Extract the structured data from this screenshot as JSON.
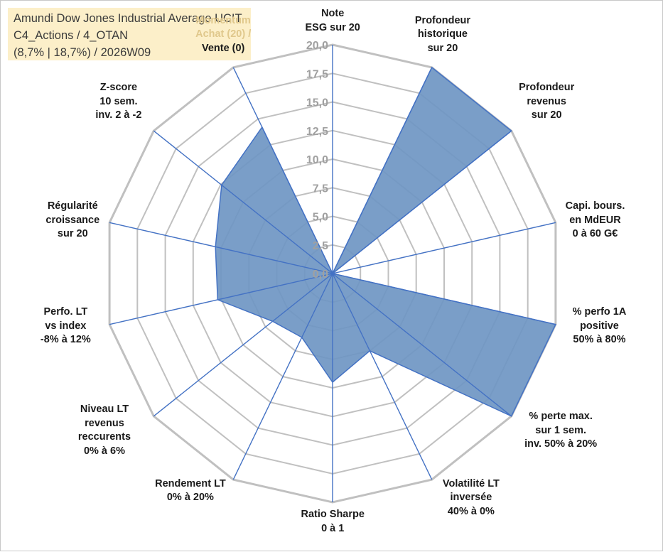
{
  "header": {
    "lines": [
      "Amundi Dow Jones Industrial Average UCIT",
      "C4_Actions / 4_OTAN",
      "(8,7% | 18,7%) / 2026W09"
    ]
  },
  "colors": {
    "fill": "#6f96c3",
    "stroke": "#4472c4",
    "grid_ring": "#c0c0c0",
    "spoke": "#4472c4",
    "title_bg": "#fcefc9",
    "muted_label": "#e0c88c"
  },
  "chart_data": {
    "type": "radar",
    "title": "",
    "rmax": 20,
    "ticks": [
      "0,0",
      "2,5",
      "5,0",
      "7,5",
      "10,0",
      "12,5",
      "15,0",
      "17,5",
      "20,0"
    ],
    "axes": [
      {
        "label": [
          "Note",
          "ESG sur 20"
        ],
        "value": 0
      },
      {
        "label": [
          "Profondeur",
          "historique",
          "sur 20"
        ],
        "value": 20
      },
      {
        "label": [
          "Profondeur",
          "revenus",
          "sur 20"
        ],
        "value": 20
      },
      {
        "label": [
          "Capi. bours.",
          "en MdEUR",
          "0 à 60 G€"
        ],
        "value": 0
      },
      {
        "label": [
          "% perfo 1A",
          "positive",
          "50% à 80%"
        ],
        "value": 20
      },
      {
        "label": [
          "% perte max.",
          "sur 1 sem.",
          "inv. 50% à 20%"
        ],
        "value": 20
      },
      {
        "label": [
          "Volatilité LT",
          "inversée",
          "40% à 0%"
        ],
        "value": 7.5
      },
      {
        "label": [
          "Ratio Sharpe",
          "0 à 1"
        ],
        "value": 9.5
      },
      {
        "label": [
          "Rendement LT",
          "0% à 20%"
        ],
        "value": 6.2
      },
      {
        "label": [
          "Niveau LT",
          "revenus",
          "reccurents",
          "0% à 6%"
        ],
        "value": 6.7
      },
      {
        "label": [
          "Perfo. LT",
          "vs index",
          "-8% à 12%"
        ],
        "value": 10.3
      },
      {
        "label": [
          "Régularité",
          "croissance",
          "sur 20"
        ],
        "value": 10.5
      },
      {
        "label": [
          "Z-score",
          "10 sem.",
          "inv. 2 à -2"
        ],
        "value": 12.4
      },
      {
        "label": [
          "Momentum",
          "Achat (20) /",
          "Vente (0)"
        ],
        "value": 14.2
      }
    ]
  }
}
